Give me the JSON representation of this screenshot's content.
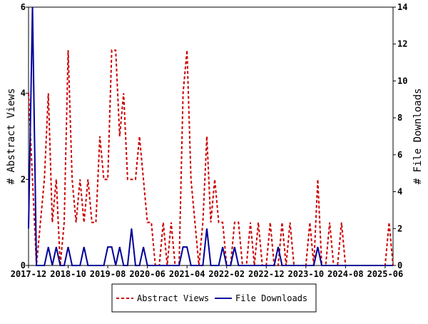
{
  "chart_data": {
    "type": "line",
    "ylabel": "# Abstract Views",
    "y2label": "# File Downloads",
    "x": [
      "2017-12",
      "2018-01",
      "2018-02",
      "2018-03",
      "2018-04",
      "2018-05",
      "2018-06",
      "2018-07",
      "2018-08",
      "2018-09",
      "2018-10",
      "2018-11",
      "2018-12",
      "2019-01",
      "2019-02",
      "2019-03",
      "2019-04",
      "2019-05",
      "2019-06",
      "2019-07",
      "2019-08",
      "2019-09",
      "2019-10",
      "2019-11",
      "2019-12",
      "2020-01",
      "2020-02",
      "2020-03",
      "2020-04",
      "2020-05",
      "2020-06",
      "2020-07",
      "2020-08",
      "2020-09",
      "2020-10",
      "2020-11",
      "2020-12",
      "2021-01",
      "2021-02",
      "2021-03",
      "2021-04",
      "2021-05",
      "2021-06",
      "2021-07",
      "2021-08",
      "2021-09",
      "2021-10",
      "2021-11",
      "2021-12",
      "2022-01",
      "2022-02",
      "2022-03",
      "2022-04",
      "2022-05",
      "2022-06",
      "2022-07",
      "2022-08",
      "2022-09",
      "2022-10",
      "2022-11",
      "2022-12",
      "2023-01",
      "2023-02",
      "2023-03",
      "2023-04",
      "2023-05",
      "2023-06",
      "2023-07",
      "2023-08",
      "2023-09",
      "2023-10",
      "2023-11",
      "2023-12",
      "2024-01",
      "2024-02",
      "2024-03",
      "2024-04",
      "2024-05",
      "2024-06",
      "2024-07",
      "2024-08",
      "2024-09",
      "2024-10",
      "2024-11",
      "2024-12",
      "2025-01",
      "2025-02",
      "2025-03",
      "2025-04",
      "2025-05",
      "2025-06",
      "2025-07",
      "2025-08"
    ],
    "xticks": [
      "2017-12",
      "2018-10",
      "2019-08",
      "2020-06",
      "2021-04",
      "2022-02",
      "2022-12",
      "2023-10",
      "2024-08",
      "2025-06"
    ],
    "series": [
      {
        "name": "Abstract Views",
        "color": "#cc0000",
        "dashed": true,
        "axis": "y",
        "values": [
          4,
          2,
          0,
          1,
          2,
          4,
          1,
          2,
          0,
          1,
          5,
          2,
          1,
          2,
          1,
          2,
          1,
          1,
          3,
          2,
          2,
          5,
          5,
          3,
          4,
          2,
          2,
          2,
          3,
          2,
          1,
          1,
          0,
          0,
          1,
          0,
          1,
          0,
          0,
          4,
          5,
          2,
          1,
          0,
          1,
          3,
          1,
          2,
          1,
          1,
          0,
          0,
          1,
          1,
          0,
          0,
          1,
          0,
          1,
          0,
          0,
          1,
          0,
          0,
          1,
          0,
          1,
          0,
          0,
          0,
          0,
          1,
          0,
          2,
          0,
          0,
          1,
          0,
          0,
          1,
          0,
          0,
          0,
          0,
          0,
          0,
          0,
          0,
          0,
          0,
          0,
          1,
          0
        ]
      },
      {
        "name": "File Downloads",
        "color": "#000099",
        "dashed": false,
        "axis": "y2",
        "values": [
          2,
          14,
          0,
          0,
          0,
          1,
          0,
          1,
          0,
          0,
          1,
          0,
          0,
          0,
          1,
          0,
          0,
          0,
          0,
          0,
          1,
          1,
          0,
          1,
          0,
          0,
          2,
          0,
          0,
          1,
          0,
          0,
          0,
          0,
          0,
          0,
          0,
          0,
          0,
          1,
          1,
          0,
          0,
          0,
          0,
          2,
          0,
          0,
          0,
          1,
          0,
          0,
          1,
          0,
          0,
          0,
          0,
          0,
          0,
          0,
          0,
          0,
          0,
          1,
          0,
          0,
          0,
          0,
          0,
          0,
          0,
          0,
          0,
          1,
          0,
          0,
          0,
          0,
          0,
          0,
          0,
          0,
          0,
          0,
          0,
          0,
          0,
          0,
          0,
          0,
          0,
          0,
          0
        ]
      }
    ],
    "ylim": [
      0,
      6
    ],
    "yticks": [
      0,
      2,
      4,
      6
    ],
    "y2lim": [
      0,
      14
    ],
    "y2ticks": [
      0,
      2,
      4,
      6,
      8,
      10,
      12,
      14
    ]
  }
}
